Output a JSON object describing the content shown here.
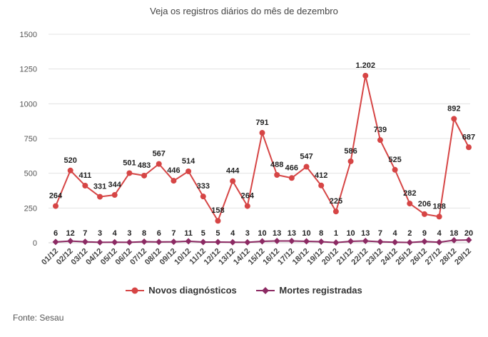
{
  "page": {
    "title": "Veja os registros diários do mês de dezembro",
    "source": "Fonte: Sesau"
  },
  "colors": {
    "novos": "#d64545",
    "mortes": "#8c2a63",
    "grid": "#e3e3e3",
    "axis": "#555555"
  },
  "chart_data": {
    "type": "line",
    "title": "Veja os registros diários do mês de dezembro",
    "xlabel": "",
    "ylabel": "",
    "ylim": [
      0,
      1500
    ],
    "yticks": [
      "0",
      "250",
      "500",
      "750",
      "1000",
      "1250",
      "1500"
    ],
    "grid": true,
    "legend_position": "bottom",
    "categories": [
      "01/12",
      "02/12",
      "03/12",
      "04/12",
      "05/12",
      "06/12",
      "07/12",
      "08/12",
      "09/12",
      "10/12",
      "11/12",
      "12/12",
      "13/12",
      "14/12",
      "15/12",
      "16/12",
      "17/12",
      "18/12",
      "19/12",
      "20/12",
      "21/12",
      "22/12",
      "23/12",
      "24/12",
      "25/12",
      "26/12",
      "27/12",
      "28/12",
      "29/12"
    ],
    "series": [
      {
        "name": "Novos diagnósticos",
        "color": "#d64545",
        "marker": "circle",
        "values": [
          264,
          520,
          411,
          331,
          344,
          501,
          483,
          567,
          446,
          514,
          333,
          158,
          444,
          264,
          791,
          488,
          466,
          547,
          412,
          225,
          586,
          1202,
          739,
          525,
          282,
          206,
          188,
          892,
          687
        ],
        "labels": [
          "264",
          "520",
          "411",
          "331",
          "344",
          "501",
          "483",
          "567",
          "446",
          "514",
          "333",
          "158",
          "444",
          "264",
          "791",
          "488",
          "466",
          "547",
          "412",
          "225",
          "586",
          "1.202",
          "739",
          "525",
          "282",
          "206",
          "188",
          "892",
          "687"
        ]
      },
      {
        "name": "Mortes registradas",
        "color": "#8c2a63",
        "marker": "diamond",
        "values": [
          6,
          12,
          7,
          3,
          4,
          3,
          8,
          6,
          7,
          11,
          5,
          5,
          4,
          3,
          10,
          13,
          13,
          10,
          8,
          1,
          10,
          13,
          7,
          4,
          2,
          9,
          4,
          18,
          20
        ],
        "labels": [
          "6",
          "12",
          "7",
          "3",
          "4",
          "3",
          "8",
          "6",
          "7",
          "11",
          "5",
          "5",
          "4",
          "3",
          "10",
          "13",
          "13",
          "10",
          "8",
          "1",
          "10",
          "13",
          "7",
          "4",
          "2",
          "9",
          "4",
          "18",
          "20"
        ]
      }
    ]
  }
}
